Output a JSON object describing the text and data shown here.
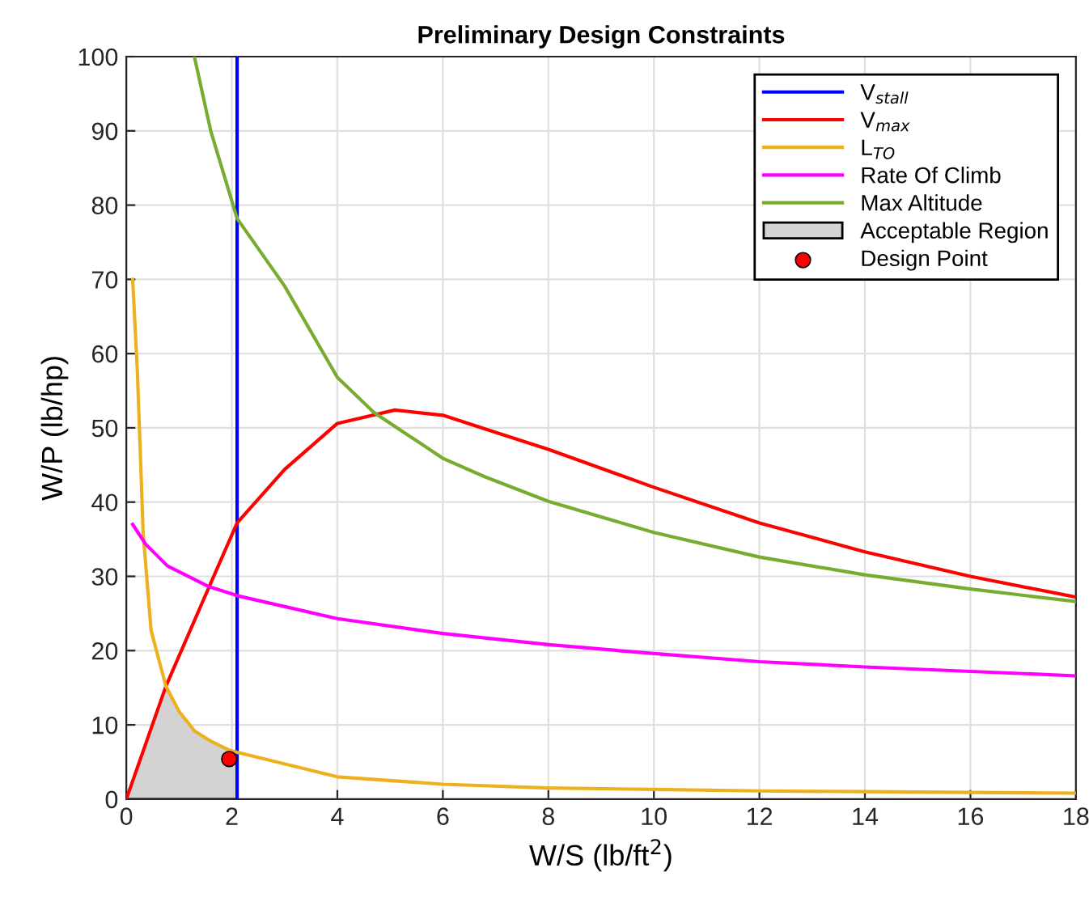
{
  "chart_data": {
    "type": "line",
    "title": "Preliminary Design Constraints",
    "xlabel": "W/S (lb/ft$^{2}$)",
    "ylabel": "W/P (lb/hp)",
    "xlim": [
      0,
      18
    ],
    "ylim": [
      0,
      100
    ],
    "xticks": [
      0,
      2,
      4,
      6,
      8,
      10,
      12,
      14,
      16,
      18
    ],
    "yticks": [
      0,
      10,
      20,
      30,
      40,
      50,
      60,
      70,
      80,
      90,
      100
    ],
    "grid": true,
    "legend": "top right",
    "series": [
      {
        "name": "V$_{stall}$",
        "color": "#0000ff",
        "x": [
          2.1,
          2.1
        ],
        "values": [
          0,
          100
        ]
      },
      {
        "name": "V$_{max}$",
        "color": "#ff0000",
        "x": [
          0,
          0.75,
          1.57,
          2.1,
          3,
          4,
          5.09,
          6,
          7,
          8,
          10,
          12,
          14,
          16,
          18
        ],
        "values": [
          0,
          15.2,
          28.6,
          37.2,
          44.4,
          50.6,
          52.4,
          51.7,
          49.4,
          47.1,
          42.0,
          37.2,
          33.3,
          30.0,
          27.2
        ]
      },
      {
        "name": "L$_{TO}$",
        "color": "#edb120",
        "x": [
          0.12,
          0.21,
          0.32,
          0.47,
          0.75,
          1.0,
          1.29,
          1.6,
          1.95,
          2.1,
          4,
          6,
          8,
          10,
          12,
          14,
          16,
          18
        ],
        "values": [
          70,
          57.5,
          35.7,
          22.7,
          15.2,
          11.8,
          9.2,
          7.8,
          6.6,
          6.3,
          3.0,
          2.0,
          1.5,
          1.3,
          1.1,
          1.0,
          0.9,
          0.8
        ]
      },
      {
        "name": "Rate Of Climb",
        "color": "#ff00ff",
        "x": [
          0.12,
          0.37,
          0.78,
          1.57,
          2.1,
          4,
          6,
          8,
          10,
          12,
          14,
          16,
          18
        ],
        "values": [
          37.0,
          34.3,
          31.4,
          28.6,
          27.4,
          24.3,
          22.3,
          20.8,
          19.6,
          18.5,
          17.8,
          17.2,
          16.6
        ]
      },
      {
        "name": "Max Altitude",
        "color": "#77ac30",
        "x": [
          1.29,
          1.6,
          2.1,
          3,
          4,
          4.69,
          6,
          6.8,
          8,
          10,
          12,
          14,
          16,
          18
        ],
        "values": [
          100,
          90,
          78.2,
          69.1,
          56.8,
          52.1,
          45.9,
          43.4,
          40.1,
          35.9,
          32.6,
          30.2,
          28.3,
          26.6
        ]
      },
      {
        "name": "Acceptable Region",
        "type": "area",
        "color": "#d3d3d3",
        "x": [
          0,
          0.75,
          1.0,
          1.29,
          1.6,
          1.95,
          2.1,
          2.1
        ],
        "values": [
          0,
          15.2,
          11.8,
          9.2,
          7.8,
          6.6,
          6.3,
          0
        ]
      },
      {
        "name": "Design Point",
        "type": "scatter",
        "color": "#ff0000",
        "marker": "circle",
        "x": [
          1.95
        ],
        "values": [
          5.4
        ]
      }
    ]
  }
}
